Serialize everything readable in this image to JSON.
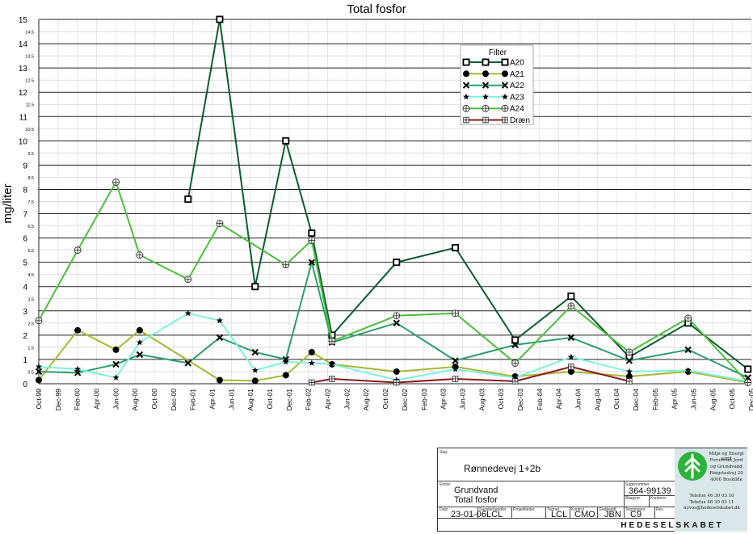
{
  "chart_data": {
    "type": "line",
    "title": "Total fosfor",
    "ylabel": "mg/liter",
    "xlabel": "",
    "ylim": [
      0,
      15
    ],
    "grid": true,
    "legend_title": "Filter",
    "legend_position": "top-right",
    "x_tick_labels": [
      "Oct-99",
      "Dec-99",
      "Feb-00",
      "Apr-00",
      "Jun-00",
      "Aug-00",
      "Oct-00",
      "Dec-00",
      "Feb-01",
      "Apr-01",
      "Jun-01",
      "Aug-01",
      "Oct-01",
      "Dec-01",
      "Feb-02",
      "Apr-02",
      "Jun-02",
      "Aug-02",
      "Oct-02",
      "Dec-02",
      "Feb-03",
      "Apr-03",
      "Jun-03",
      "Aug-03",
      "Oct-03",
      "Dec-03",
      "Feb-04",
      "Apr-04",
      "Jun-04",
      "Aug-04",
      "Oct-04",
      "Dec-04",
      "Feb-05",
      "Apr-05",
      "Jun-05",
      "Aug-05",
      "Oct-05",
      "Dec-05"
    ],
    "y_major_ticks": [
      "0",
      "1",
      "2",
      "3",
      "4",
      "5",
      "6",
      "7",
      "8",
      "9",
      "10",
      "11",
      "12",
      "13",
      "14",
      "15"
    ],
    "y_minor_ticks": [
      "0.5",
      "1.5",
      "2.5",
      "3.5",
      "4.5",
      "5.5",
      "6.5",
      "7.5",
      "8.5",
      "9.5",
      "10.5",
      "11.5",
      "12.5",
      "13.5",
      "14.5"
    ],
    "series": [
      {
        "name": "A20",
        "color": "#0d5c2e",
        "marker": "square",
        "points": [
          [
            "2001-01-15",
            7.6
          ],
          [
            "2001-04-25",
            15.0
          ],
          [
            "2001-08-15",
            4.0
          ],
          [
            "2001-11-20",
            10.0
          ],
          [
            "2002-02-10",
            6.2
          ],
          [
            "2002-04-15",
            2.0
          ],
          [
            "2002-11-05",
            5.0
          ],
          [
            "2003-05-10",
            5.6
          ],
          [
            "2003-11-15",
            1.8
          ],
          [
            "2004-05-10",
            3.6
          ],
          [
            "2004-11-10",
            1.1
          ],
          [
            "2005-05-15",
            2.5
          ],
          [
            "2005-11-20",
            0.6
          ]
        ]
      },
      {
        "name": "A21",
        "color": "#a8b832",
        "marker": "circle",
        "points": [
          [
            "1999-10-01",
            0.15
          ],
          [
            "2000-02-01",
            2.2
          ],
          [
            "2000-06-01",
            1.4
          ],
          [
            "2000-08-15",
            2.2
          ],
          [
            "2001-04-25",
            0.15
          ],
          [
            "2001-08-15",
            0.12
          ],
          [
            "2001-11-20",
            0.35
          ],
          [
            "2002-02-10",
            1.3
          ],
          [
            "2002-04-15",
            0.8
          ],
          [
            "2002-11-05",
            0.5
          ],
          [
            "2003-05-10",
            0.7
          ],
          [
            "2003-11-15",
            0.3
          ],
          [
            "2004-05-10",
            0.5
          ],
          [
            "2004-11-10",
            0.3
          ],
          [
            "2005-05-15",
            0.5
          ],
          [
            "2005-11-20",
            0.05
          ]
        ]
      },
      {
        "name": "A22",
        "color": "#2e9e6e",
        "marker": "x",
        "points": [
          [
            "1999-10-01",
            0.5
          ],
          [
            "2000-02-01",
            0.45
          ],
          [
            "2000-06-01",
            0.8
          ],
          [
            "2000-08-15",
            1.2
          ],
          [
            "2001-01-15",
            0.85
          ],
          [
            "2001-04-25",
            1.9
          ],
          [
            "2001-08-15",
            1.3
          ],
          [
            "2001-11-20",
            1.0
          ],
          [
            "2002-02-10",
            5.0
          ],
          [
            "2002-04-15",
            1.7
          ],
          [
            "2002-11-05",
            2.5
          ],
          [
            "2003-05-10",
            0.95
          ],
          [
            "2003-11-15",
            1.6
          ],
          [
            "2004-05-10",
            1.9
          ],
          [
            "2004-11-10",
            0.95
          ],
          [
            "2005-05-15",
            1.4
          ],
          [
            "2005-11-20",
            0.25
          ]
        ]
      },
      {
        "name": "A23",
        "color": "#7ff0e0",
        "marker": "star",
        "points": [
          [
            "1999-10-01",
            0.7
          ],
          [
            "2000-02-01",
            0.6
          ],
          [
            "2000-06-01",
            0.25
          ],
          [
            "2000-08-15",
            1.7
          ],
          [
            "2001-01-15",
            2.9
          ],
          [
            "2001-04-25",
            2.6
          ],
          [
            "2001-08-15",
            0.55
          ],
          [
            "2001-11-20",
            0.9
          ],
          [
            "2002-02-10",
            0.85
          ],
          [
            "2002-04-15",
            0.8
          ],
          [
            "2002-11-05",
            0.15
          ],
          [
            "2003-05-10",
            0.6
          ],
          [
            "2003-11-15",
            0.25
          ],
          [
            "2004-05-10",
            1.1
          ],
          [
            "2004-11-10",
            0.5
          ],
          [
            "2005-05-15",
            0.55
          ],
          [
            "2005-11-20",
            0.1
          ]
        ]
      },
      {
        "name": "A24",
        "color": "#4cbe3c",
        "marker": "circle-plus",
        "points": [
          [
            "1999-10-01",
            2.6
          ],
          [
            "2000-02-01",
            5.5
          ],
          [
            "2000-06-01",
            8.3
          ],
          [
            "2000-08-15",
            5.3
          ],
          [
            "2001-01-15",
            4.3
          ],
          [
            "2001-04-25",
            6.6
          ],
          [
            "2001-11-20",
            4.9
          ],
          [
            "2002-02-10",
            5.9
          ],
          [
            "2002-04-15",
            1.75
          ],
          [
            "2002-11-05",
            2.8
          ],
          [
            "2003-05-10",
            2.9
          ],
          [
            "2003-11-15",
            0.85
          ],
          [
            "2004-05-10",
            3.2
          ],
          [
            "2004-11-10",
            1.3
          ],
          [
            "2005-05-15",
            2.7
          ],
          [
            "2005-11-20",
            0.05
          ]
        ]
      },
      {
        "name": "Dræn",
        "color": "#8b1a1a",
        "marker": "square-plus",
        "points": [
          [
            "2002-02-10",
            0.05
          ],
          [
            "2002-04-15",
            0.2
          ],
          [
            "2002-11-05",
            0.05
          ],
          [
            "2003-05-10",
            0.2
          ],
          [
            "2003-11-15",
            0.1
          ],
          [
            "2004-05-10",
            0.7
          ],
          [
            "2004-11-10",
            0.1
          ]
        ]
      }
    ]
  },
  "title_block": {
    "sag_label": "Sag:",
    "sag_value": "Rønnedevej 1+2b",
    "emne_label": "Emne:",
    "emne_line1": "Grundvand",
    "emne_line2": "Total fosfor",
    "sagsnummer_label": "Sagsnummer",
    "sagsnummer_value": "364-99139",
    "bilag_label": "Bilagsnr.",
    "kontor_label": "Kontornr.",
    "dato_label": "Dato",
    "dato_value": "23-01-06",
    "sagsbeh_label": "Sagsbehandler",
    "sagsbeh_value": "LCL",
    "projektleder_label": "Projektleder",
    "tegner_label": "Tegner",
    "tegner_value": "LCL",
    "kontrol_label": "Kontrol",
    "kontrol_value": "CMO",
    "godkendt_label": "Godkendt",
    "godkendt_value": "JBN",
    "tegning_label": "Tegningsnr.",
    "tegning_value": "C9",
    "rev_label": "Rev.",
    "logo_lines": [
      "Miljø og Energi samt",
      "Forurenet Jord",
      "og Grundvand",
      "Ringstedvej 20",
      "4000 Roskilde"
    ],
    "phone1": "Telefon 46 30 03 10",
    "phone2": "Telefax 46 30 03 11",
    "email": "novos@hedeselskabet.dk",
    "company": "HEDESELSKABET",
    "logo_color": "#2db33a"
  }
}
